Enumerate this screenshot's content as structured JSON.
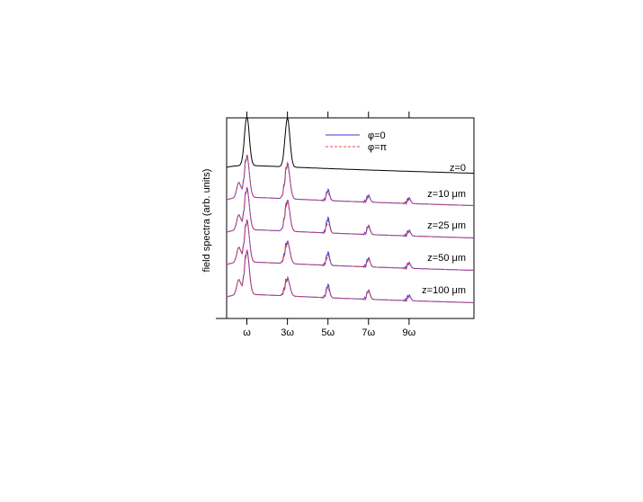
{
  "chart_data": {
    "type": "line",
    "ylabel": "field spectra (arb. units)",
    "xlabel": "",
    "x_ticks": [
      {
        "value": 1,
        "label": "ω"
      },
      {
        "value": 3,
        "label": "3ω"
      },
      {
        "value": 5,
        "label": "5ω"
      },
      {
        "value": 7,
        "label": "7ω"
      },
      {
        "value": 9,
        "label": "9ω"
      }
    ],
    "xlim": [
      0,
      12.2
    ],
    "legend": {
      "placement": "top-center",
      "entries": [
        {
          "label": "φ=0",
          "color": "#3a3ad6",
          "style": "solid"
        },
        {
          "label": "φ=π",
          "color": "#e8414f",
          "style": "dashed"
        }
      ]
    },
    "curves": [
      {
        "label": "z=0",
        "peaks": [
          {
            "x": 1,
            "h": 1.0
          },
          {
            "x": 3,
            "h": 1.0
          }
        ],
        "baseline": [
          0.07,
          0.0
        ],
        "fine_structure": false,
        "series": [
          "φ=0"
        ]
      },
      {
        "label": "z=10 μm",
        "peaks": [
          {
            "x": 1,
            "h": 0.95
          },
          {
            "x": 3,
            "h": 0.8
          },
          {
            "x": 5,
            "h": 0.25
          },
          {
            "x": 7,
            "h": 0.15
          },
          {
            "x": 9,
            "h": 0.12
          }
        ],
        "baseline": [
          0.1,
          0.0
        ],
        "fine_structure": true,
        "series": [
          "φ=0",
          "φ=π"
        ]
      },
      {
        "label": "z=25 μm",
        "peaks": [
          {
            "x": 1,
            "h": 0.95
          },
          {
            "x": 3,
            "h": 0.7
          },
          {
            "x": 5,
            "h": 0.35
          },
          {
            "x": 7,
            "h": 0.2
          },
          {
            "x": 9,
            "h": 0.12
          }
        ],
        "baseline": [
          0.1,
          0.0
        ],
        "fine_structure": true,
        "series": [
          "φ=0",
          "φ=π"
        ]
      },
      {
        "label": "z=50 μm",
        "peaks": [
          {
            "x": 1,
            "h": 0.95
          },
          {
            "x": 3,
            "h": 0.5
          },
          {
            "x": 5,
            "h": 0.3
          },
          {
            "x": 7,
            "h": 0.2
          },
          {
            "x": 9,
            "h": 0.12
          }
        ],
        "baseline": [
          0.1,
          0.0
        ],
        "fine_structure": true,
        "series": [
          "φ=0",
          "φ=π"
        ]
      },
      {
        "label": "z=100 μm",
        "peaks": [
          {
            "x": 1,
            "h": 1.0
          },
          {
            "x": 3,
            "h": 0.4
          },
          {
            "x": 5,
            "h": 0.3
          },
          {
            "x": 7,
            "h": 0.2
          },
          {
            "x": 9,
            "h": 0.12
          }
        ],
        "baseline": [
          0.1,
          0.0
        ],
        "fine_structure": true,
        "series": [
          "φ=0",
          "φ=π"
        ]
      }
    ],
    "colors": {
      "z0_line": "#000000",
      "phi0": "#3a3ad6",
      "phipi": "#e8414f"
    },
    "grid": false
  }
}
